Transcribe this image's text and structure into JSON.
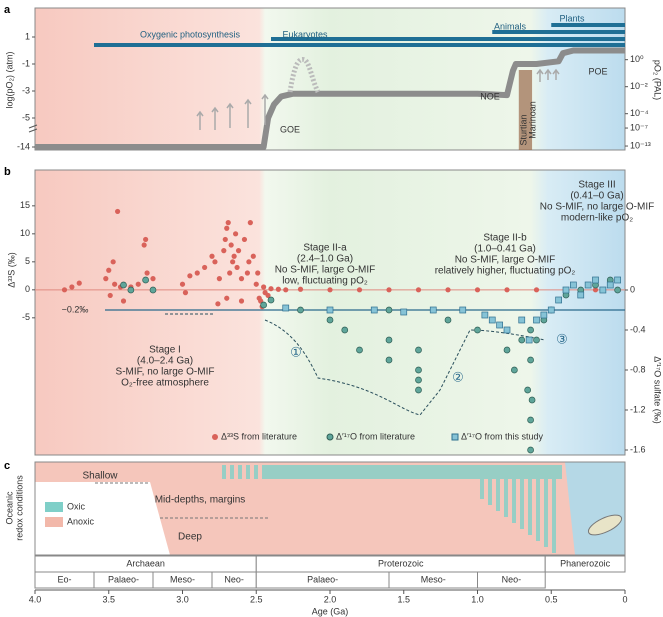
{
  "chart_data": [
    {
      "type": "line",
      "label": "a",
      "ylabel": "log(pO₂) (atm)",
      "y2label": "pO₂ (PAL)",
      "xlim": [
        4,
        0
      ],
      "ylim": [
        -5.74,
        3
      ],
      "yticks": [
        1,
        -1,
        -3,
        -5
      ],
      "ybreak_lim": [
        -15,
        -7
      ],
      "ybreak_ticks": [
        -14
      ],
      "y2ticks": [
        {
          "value": -0.68,
          "label": "10⁰"
        },
        {
          "value": -2.68,
          "label": "10⁻²"
        },
        {
          "value": -4.68,
          "label": "10⁻⁴"
        },
        {
          "value": -7.68,
          "label": "10⁻⁷"
        },
        {
          "value": -13.68,
          "label": "10⁻¹³"
        }
      ],
      "x": [
        4.0,
        3.2,
        2.5,
        2.45,
        2.42,
        2.38,
        2.33,
        2.25,
        1.0,
        0.8,
        0.76,
        0.74,
        0.6,
        0.45,
        0.42,
        0.35,
        0
      ],
      "values": [
        -14,
        -14,
        -14,
        -14,
        -5,
        -4,
        -3.4,
        -3.2,
        -3.2,
        -3.3,
        -1.5,
        -1,
        -1,
        -0.8,
        -0.2,
        0,
        0
      ],
      "color": "#8c8c8c",
      "lineages": [
        {
          "name": "Oxygenic photosynthesis",
          "start": 3.6
        },
        {
          "name": "Eukaryotes",
          "start": 2.4
        },
        {
          "name": "Animals",
          "start": 0.9
        },
        {
          "name": "Plants",
          "start": 0.5
        }
      ],
      "lineage_color": "#1f6f95",
      "events": [
        "GOE",
        "NOE",
        "POE",
        "Sturtian",
        "Marinoan"
      ]
    },
    {
      "type": "scatter",
      "label": "b",
      "ylabel": "Δ³³S (‰)",
      "y2label": "Δ′¹⁷O sulfate (‰)",
      "xlim": [
        4,
        0
      ],
      "ylim": [
        -29.5,
        21.4
      ],
      "yticks": [
        15,
        10,
        5,
        0,
        -5
      ],
      "y2lim": [
        -1.65,
        1.2
      ],
      "y2ticks": [
        0,
        -0.4,
        -0.8,
        -1.2,
        -1.6
      ],
      "reference": {
        "value": -0.2,
        "label": "−0.2‰"
      },
      "series": [
        {
          "name": "Δ³³S from literature",
          "color": "#d9625a",
          "marker": "dot",
          "x": [
            3.8,
            3.75,
            3.7,
            3.52,
            3.5,
            3.49,
            3.47,
            3.46,
            3.44,
            3.42,
            3.3,
            3.26,
            3.25,
            3.24,
            3.2,
            3.0,
            2.98,
            2.95,
            2.9,
            2.85,
            2.8,
            2.78,
            2.75,
            2.72,
            2.71,
            2.7,
            2.69,
            2.68,
            2.67,
            2.66,
            2.65,
            2.64,
            2.63,
            2.62,
            2.6,
            2.58,
            2.56,
            2.55,
            2.54,
            2.52,
            2.5,
            2.49,
            2.48,
            2.47,
            2.46,
            2.45,
            2.44,
            2.42,
            2.4,
            2.35,
            2.3,
            2.2,
            2.0,
            1.8,
            1.6,
            1.4,
            1.2,
            1.0,
            0.8,
            0.6,
            0.4,
            0.2,
            3.4,
            3.35,
            2.76,
            2.7,
            2.6
          ],
          "values": [
            0,
            0.5,
            1.2,
            2,
            3.5,
            -1,
            5,
            1,
            14,
            0.5,
            1,
            8,
            9,
            3,
            2,
            1,
            -0.5,
            2.5,
            3,
            4,
            6,
            5,
            2,
            7,
            9,
            11,
            12,
            3,
            8,
            5,
            6,
            10,
            4,
            7,
            2,
            9,
            3,
            5,
            12,
            6,
            1,
            3,
            -1.5,
            -2,
            -3,
            0.5,
            -0.5,
            -1,
            0.2,
            0.1,
            0,
            0.1,
            0,
            0,
            0,
            0,
            0,
            0,
            0,
            0,
            0,
            0,
            -2,
            0.5,
            -2.5,
            -1.5,
            -2
          ]
        },
        {
          "name": "Δ′¹⁷O from literature",
          "color": "#5fa59a",
          "marker": "circle",
          "axis": "y2",
          "x": [
            3.4,
            3.35,
            3.25,
            3.2,
            2.4,
            2.2,
            2.0,
            1.9,
            1.8,
            1.6,
            1.6,
            1.6,
            1.4,
            1.4,
            1.4,
            1.4,
            1.2,
            1.0,
            0.8,
            0.75,
            0.7,
            0.66,
            0.64,
            0.64,
            0.64,
            0.64,
            0.63,
            0.6,
            0.55,
            0.5,
            0.4,
            0.3,
            0.2,
            0.1,
            0.05,
            2.45
          ],
          "values": [
            0.05,
            0,
            0.1,
            0,
            -0.1,
            -0.2,
            -0.3,
            -0.4,
            -0.6,
            -0.2,
            -0.5,
            -0.7,
            -0.9,
            -1.0,
            -0.8,
            -0.6,
            -0.3,
            -0.4,
            -0.6,
            -0.8,
            -0.5,
            -1.0,
            -1.3,
            -1.6,
            -0.7,
            -0.4,
            -1.1,
            -0.5,
            -0.3,
            -0.2,
            -0.05,
            0,
            0.05,
            0.1,
            0.0,
            -0.15
          ]
        },
        {
          "name": "Δ′¹⁷O from this study",
          "color": "#86c3d6",
          "marker": "square",
          "axis": "y2",
          "x": [
            2.3,
            2.0,
            1.7,
            1.5,
            1.3,
            1.1,
            0.95,
            0.9,
            0.85,
            0.8,
            0.7,
            0.65,
            0.6,
            0.55,
            0.5,
            0.45,
            0.4,
            0.35,
            0.3,
            0.25,
            0.2,
            0.15,
            0.1,
            0.05
          ],
          "values": [
            -0.18,
            -0.2,
            -0.2,
            -0.22,
            -0.2,
            -0.2,
            -0.25,
            -0.3,
            -0.35,
            -0.4,
            -0.3,
            -0.5,
            -0.3,
            -0.25,
            -0.2,
            -0.1,
            0,
            0.05,
            -0.05,
            0.05,
            0.1,
            0,
            0.05,
            0.1
          ]
        }
      ],
      "stages": [
        {
          "lines": [
            "Stage I",
            "(4.0–2.4 Ga)",
            "S-MIF, no large O-MIF",
            "O₂-free atmosphere"
          ]
        },
        {
          "lines": [
            "Stage II-a",
            "(2.4–1.0 Ga)",
            "No S-MIF, large O-MIF",
            "low, fluctuating pO₂"
          ]
        },
        {
          "lines": [
            "Stage II-b",
            "(1.0–0.41 Ga)",
            "No S-MIF, large O-MIF",
            "relatively higher, fluctuating pO₂"
          ]
        },
        {
          "lines": [
            "Stage III",
            "(0.41–0 Ga)",
            "No S-MIF, no large O-MIF",
            "modern-like pO₂"
          ]
        }
      ],
      "annotations": [
        "①",
        "②",
        "③"
      ]
    },
    {
      "type": "timescale",
      "label": "c",
      "ylabel": [
        "Oceanic",
        "redox conditions"
      ],
      "zones": [
        "Shallow",
        "Mid-depths, margins",
        "Deep"
      ],
      "legend": [
        {
          "name": "Oxic",
          "color": "#7fcfc8"
        },
        {
          "name": "Anoxic",
          "color": "#f2b8aa"
        }
      ],
      "xlim": [
        4,
        0
      ],
      "xlabel": "Age (Ga)",
      "xticks": [
        {
          "value": 4,
          "label": "4.0"
        },
        {
          "value": 3.5,
          "label": "3.5"
        },
        {
          "value": 3,
          "label": "3.0"
        },
        {
          "value": 2.5,
          "label": "2.5"
        },
        {
          "value": 2,
          "label": "2.0"
        },
        {
          "value": 1.5,
          "label": "1.5"
        },
        {
          "value": 1,
          "label": "1.0"
        },
        {
          "value": 0.5,
          "label": "0.5"
        },
        0
      ],
      "eons": [
        {
          "name": "Archaean",
          "start": 4.0,
          "end": 2.5
        },
        {
          "name": "Proterozoic",
          "start": 2.5,
          "end": 0.541
        },
        {
          "name": "Phanerozoic",
          "start": 0.541,
          "end": 0
        }
      ],
      "eras": [
        {
          "name": "Eo-",
          "start": 4.0,
          "end": 3.6
        },
        {
          "name": "Palaeo-",
          "start": 3.6,
          "end": 3.2
        },
        {
          "name": "Meso-",
          "start": 3.2,
          "end": 2.8
        },
        {
          "name": "Neo-",
          "start": 2.8,
          "end": 2.5
        },
        {
          "name": "Palaeo-",
          "start": 2.5,
          "end": 1.6
        },
        {
          "name": "Meso-",
          "start": 1.6,
          "end": 1.0
        },
        {
          "name": "Neo-",
          "start": 1.0,
          "end": 0.541
        }
      ]
    }
  ]
}
